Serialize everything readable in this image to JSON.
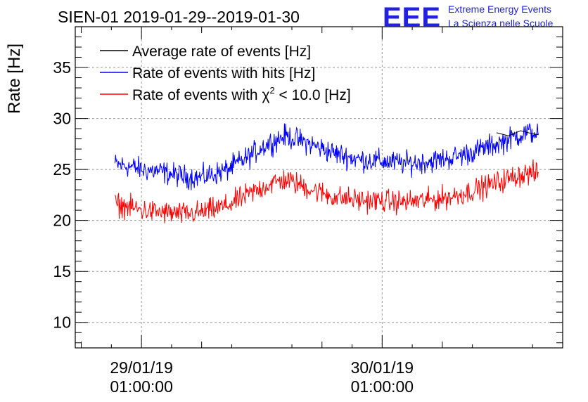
{
  "chart_data": {
    "type": "line",
    "title": "SIEN-01 2019-01-29--2019-01-30",
    "xlabel": "",
    "ylabel": "Rate [Hz]",
    "ylim": [
      7.5,
      39
    ],
    "yticks": [
      10,
      15,
      20,
      25,
      30,
      35
    ],
    "xlim": [
      -0.55,
      3.5
    ],
    "x_unit": "days since 29/01/19 01:00:00",
    "xticks": [
      {
        "x": 0,
        "line1": "29/01/19",
        "line2": "01:00:00"
      },
      {
        "x": 2,
        "line1": "30/01/19",
        "line2": "01:00:00"
      }
    ],
    "grid": true,
    "legend_position": "top-left",
    "series": [
      {
        "name": "Average rate of events [Hz]",
        "color": "#000000",
        "x": [
          2.95,
          3.05,
          3.15,
          3.25,
          3.3
        ],
        "values": [
          28.6,
          28.3,
          28.8,
          28.5,
          28.4
        ]
      },
      {
        "name": "Rate of events with hits [Hz]",
        "color": "#0000ff",
        "noise": 0.7,
        "x": [
          -0.22,
          -0.1,
          0.0,
          0.15,
          0.35,
          0.5,
          0.7,
          0.9,
          1.0,
          1.1,
          1.2,
          1.4,
          1.6,
          1.8,
          2.0,
          2.2,
          2.4,
          2.6,
          2.8,
          3.0,
          3.1,
          3.2,
          3.3
        ],
        "values": [
          25.5,
          25.3,
          25.0,
          24.8,
          24.3,
          24.2,
          24.9,
          26.3,
          27.2,
          27.8,
          28.3,
          27.5,
          26.6,
          26.0,
          25.8,
          25.6,
          25.8,
          26.2,
          26.9,
          27.7,
          28.2,
          28.6,
          28.6
        ]
      },
      {
        "name_prefix": "Rate of events with ",
        "name_symbol": "χ",
        "name_sup": "2",
        "name_suffix": " < 10.0 [Hz]",
        "color": "#ff0000",
        "noise": 0.7,
        "x": [
          -0.22,
          -0.1,
          0.0,
          0.15,
          0.35,
          0.5,
          0.7,
          0.9,
          1.0,
          1.1,
          1.2,
          1.4,
          1.6,
          1.8,
          2.0,
          2.2,
          2.4,
          2.6,
          2.8,
          3.0,
          3.1,
          3.2,
          3.3
        ],
        "values": [
          21.6,
          21.3,
          21.0,
          20.8,
          20.6,
          20.8,
          21.4,
          22.6,
          23.2,
          23.7,
          24.0,
          23.1,
          22.3,
          22.0,
          21.9,
          21.8,
          22.0,
          22.4,
          23.1,
          23.9,
          24.3,
          24.6,
          24.6
        ]
      }
    ]
  },
  "logo": {
    "letters": "EEE",
    "line1": "Extreme Energy Events",
    "line2": "La Scienza nelle Scuole"
  }
}
